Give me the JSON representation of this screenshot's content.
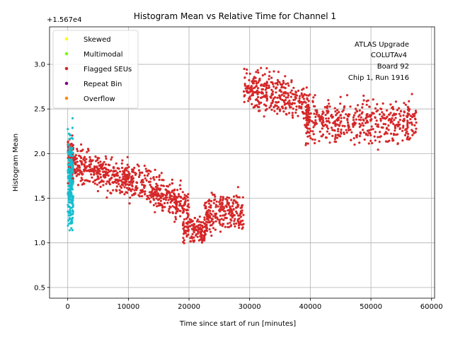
{
  "chart_data": {
    "type": "scatter",
    "title": "Histogram Mean vs Relative Time for Channel 1",
    "xlabel": "Time since start of run [minutes]",
    "ylabel": "Histogram Mean",
    "offset_text": "+1.567e4",
    "xlim": [
      -3000,
      60500
    ],
    "ylim": [
      0.38,
      3.42
    ],
    "xticks": [
      0,
      10000,
      20000,
      30000,
      40000,
      50000,
      60000
    ],
    "xtick_labels": [
      "0",
      "10000",
      "20000",
      "30000",
      "40000",
      "50000",
      "60000"
    ],
    "yticks": [
      0.5,
      1.0,
      1.5,
      2.0,
      2.5,
      3.0
    ],
    "ytick_labels": [
      "0.5",
      "1.0",
      "1.5",
      "2.0",
      "2.5",
      "3.0"
    ],
    "grid": true,
    "legend_position": "top-left",
    "legend": [
      {
        "label": "Skewed",
        "color": "#ffff00"
      },
      {
        "label": "Multimodal",
        "color": "#7cfc00"
      },
      {
        "label": "Flagged SEUs",
        "color": "#d62728"
      },
      {
        "label": "Repeat Bin",
        "color": "#800080"
      },
      {
        "label": "Overflow",
        "color": "#ff8c00"
      }
    ],
    "annotation_lines": [
      "ATLAS Upgrade",
      "COLUTAv4",
      "Board 92",
      "Chip 1, Run 1916"
    ],
    "series": [
      {
        "name": "Flagged SEUs",
        "color": "#d62728",
        "segments": [
          {
            "x_range": [
              0,
              900
            ],
            "y_center": 1.95,
            "y_spread": 0.22,
            "count": 120
          },
          {
            "x_range": [
              800,
              10000
            ],
            "y_center_start": 1.88,
            "y_center_end": 1.72,
            "y_spread": 0.18,
            "count": 330
          },
          {
            "x_range": [
              10000,
              20000
            ],
            "y_center_start": 1.72,
            "y_center_end": 1.4,
            "y_spread": 0.2,
            "count": 330
          },
          {
            "x_range": [
              19000,
              23000
            ],
            "y_center": 1.15,
            "y_spread": 0.15,
            "count": 140
          },
          {
            "x_range": [
              22500,
              29000
            ],
            "y_center": 1.35,
            "y_spread": 0.2,
            "count": 220
          },
          {
            "x_range": [
              29000,
              40000
            ],
            "y_center_start": 2.75,
            "y_center_end": 2.55,
            "y_spread": 0.22,
            "count": 330
          },
          {
            "x_range": [
              39000,
              57500
            ],
            "y_center": 2.35,
            "y_spread": 0.22,
            "count": 480
          }
        ]
      },
      {
        "name": "",
        "color": "#17becf",
        "segments": [
          {
            "x_range": [
              0,
              900
            ],
            "y_center": 1.7,
            "y_spread": 0.55,
            "count": 220
          }
        ]
      }
    ]
  }
}
